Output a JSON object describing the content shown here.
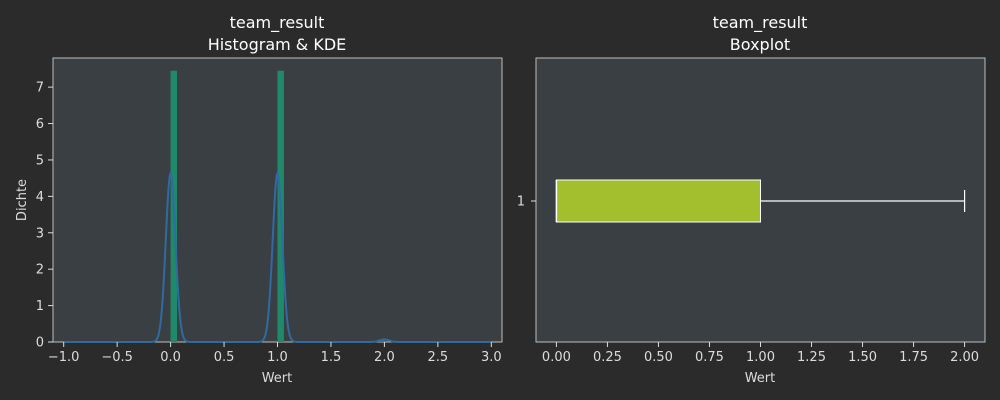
{
  "chart_data": [
    {
      "type": "histogram",
      "title": "team_result",
      "subtitle": "Histogram & KDE",
      "xlabel": "Wert",
      "ylabel": "Dichte",
      "xlim": [
        -1.1,
        3.1
      ],
      "ylim": [
        0,
        7.8
      ],
      "xticks": [
        -1.0,
        -0.5,
        0.0,
        0.5,
        1.0,
        1.5,
        2.0,
        2.5,
        3.0
      ],
      "xtick_labels": [
        "−1.0",
        "−0.5",
        "0.0",
        "0.5",
        "1.0",
        "1.5",
        "2.0",
        "2.5",
        "3.0"
      ],
      "yticks": [
        0,
        1,
        2,
        3,
        4,
        5,
        6,
        7
      ],
      "ytick_labels": [
        "0",
        "1",
        "2",
        "3",
        "4",
        "5",
        "6",
        "7"
      ],
      "histogram": {
        "color": "#1f8a6a",
        "bins": [
          {
            "x0": 0.0,
            "x1": 0.06,
            "density": 7.45
          },
          {
            "x0": 1.0,
            "x1": 1.06,
            "density": 7.45
          },
          {
            "x0": 1.94,
            "x1": 2.0,
            "density": 0.07
          }
        ]
      },
      "kde": {
        "color": "#2f6ba0",
        "peaks": [
          {
            "center": 0.0,
            "height": 4.63,
            "sd": 0.045
          },
          {
            "center": 1.0,
            "height": 4.63,
            "sd": 0.045
          },
          {
            "center": 2.0,
            "height": 0.07,
            "sd": 0.045
          }
        ],
        "x_range": [
          -1.0,
          3.0
        ]
      },
      "grid": false
    },
    {
      "type": "boxplot",
      "title": "team_result",
      "subtitle": "Boxplot",
      "xlabel": "Wert",
      "ylabel": "",
      "orientation": "horizontal",
      "xlim": [
        -0.1,
        2.1
      ],
      "xticks": [
        0.0,
        0.25,
        0.5,
        0.75,
        1.0,
        1.25,
        1.5,
        1.75,
        2.0
      ],
      "xtick_labels": [
        "0.00",
        "0.25",
        "0.50",
        "0.75",
        "1.00",
        "1.25",
        "1.50",
        "1.75",
        "2.00"
      ],
      "yticks": [
        1
      ],
      "ytick_labels": [
        "1"
      ],
      "box": {
        "min": 0.0,
        "q1": 0.0,
        "median": 0.0,
        "q3": 1.0,
        "max": 2.0,
        "color": "#a3bf2e"
      },
      "grid": false
    }
  ]
}
